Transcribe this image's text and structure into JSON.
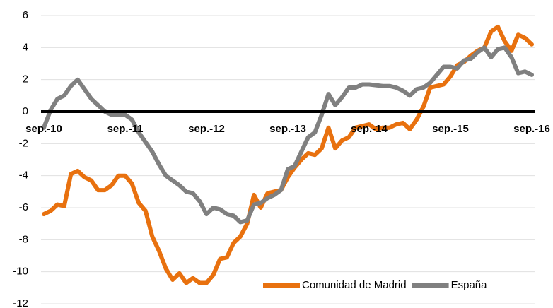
{
  "chart_data": {
    "type": "line",
    "categories": [
      "sep.-10",
      null,
      null,
      null,
      null,
      null,
      null,
      null,
      null,
      null,
      null,
      null,
      "sep.-11",
      null,
      null,
      null,
      null,
      null,
      null,
      null,
      null,
      null,
      null,
      null,
      "sep.-12",
      null,
      null,
      null,
      null,
      null,
      null,
      null,
      null,
      null,
      null,
      null,
      "sep.-13",
      null,
      null,
      null,
      null,
      null,
      null,
      null,
      null,
      null,
      null,
      null,
      "sep.-14",
      null,
      null,
      null,
      null,
      null,
      null,
      null,
      null,
      null,
      null,
      null,
      "sep.-15",
      null,
      null,
      null,
      null,
      null,
      null,
      null,
      null,
      null,
      null,
      null,
      "sep.-16"
    ],
    "series": [
      {
        "name": "Comunidad de Madrid",
        "color": "#e8710f",
        "values": [
          -6.4,
          -6.2,
          -5.8,
          -5.9,
          -3.9,
          -3.7,
          -4.1,
          -4.3,
          -4.9,
          -4.9,
          -4.6,
          -4.0,
          -4.0,
          -4.5,
          -5.7,
          -6.2,
          -7.8,
          -8.7,
          -9.8,
          -10.5,
          -10.1,
          -10.7,
          -10.4,
          -10.7,
          -10.7,
          -10.2,
          -9.2,
          -9.1,
          -8.2,
          -7.8,
          -7.0,
          -5.2,
          -6.0,
          -5.1,
          -5.0,
          -4.9,
          -4.1,
          -3.5,
          -3.0,
          -2.6,
          -2.7,
          -2.3,
          -1.0,
          -2.3,
          -1.8,
          -1.6,
          -1.0,
          -0.9,
          -0.8,
          -1.1,
          -1.0,
          -1.0,
          -0.8,
          -0.7,
          -1.1,
          -0.5,
          0.3,
          1.5,
          1.6,
          1.7,
          2.2,
          2.9,
          3.1,
          3.5,
          3.8,
          4.0,
          5.0,
          5.3,
          4.4,
          3.8,
          4.8,
          4.6,
          4.2
        ]
      },
      {
        "name": "España",
        "color": "#808080",
        "values": [
          -1.0,
          0.1,
          0.8,
          1.0,
          1.6,
          2.0,
          1.4,
          0.8,
          0.4,
          0.0,
          -0.2,
          -0.2,
          -0.2,
          -0.5,
          -1.3,
          -1.9,
          -2.5,
          -3.3,
          -4.0,
          -4.3,
          -4.6,
          -5.0,
          -5.1,
          -5.6,
          -6.4,
          -6.0,
          -6.1,
          -6.4,
          -6.5,
          -6.9,
          -6.8,
          -5.8,
          -5.7,
          -5.4,
          -5.2,
          -4.9,
          -3.6,
          -3.4,
          -2.5,
          -1.6,
          -1.3,
          -0.2,
          1.1,
          0.4,
          0.9,
          1.5,
          1.5,
          1.7,
          1.7,
          1.65,
          1.6,
          1.6,
          1.5,
          1.3,
          1.0,
          1.4,
          1.5,
          1.8,
          2.3,
          2.8,
          2.8,
          2.7,
          3.2,
          3.3,
          3.7,
          4.0,
          3.4,
          3.9,
          4.0,
          3.4,
          2.4,
          2.5,
          2.3
        ]
      }
    ],
    "ylim": [
      -12,
      6
    ],
    "yticks": [
      -12,
      -10,
      -8,
      -6,
      -4,
      -2,
      0,
      2,
      4,
      6
    ],
    "grid": true,
    "legend": "lower right"
  }
}
